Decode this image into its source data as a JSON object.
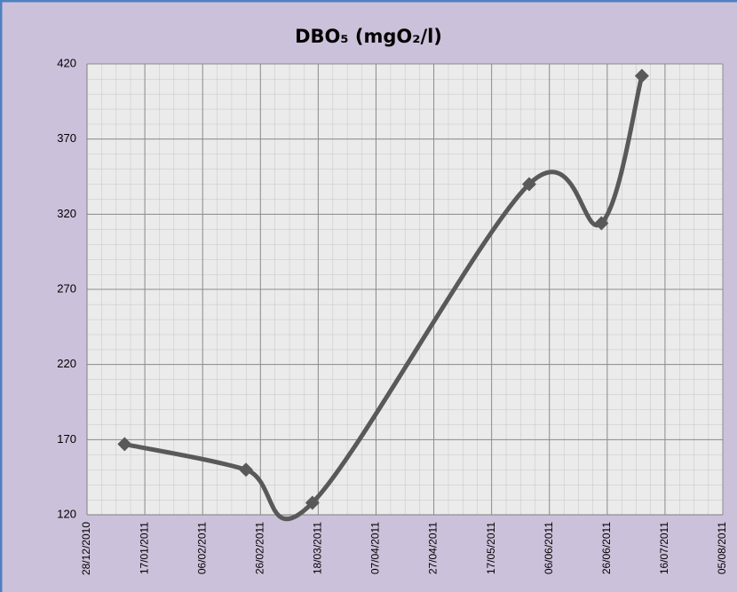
{
  "chart_data": {
    "type": "line",
    "title": "DBO₅ (mgO₂/l)",
    "x": [
      "10/01/2011",
      "21/02/2011",
      "16/03/2011",
      "30/05/2011",
      "24/06/2011",
      "08/07/2011"
    ],
    "series": [
      {
        "color": "#595959",
        "values": [
          167,
          150,
          128,
          340,
          314,
          412
        ]
      }
    ],
    "xlim": [
      "28/12/2010",
      "05/08/2011"
    ],
    "xticks": [
      "28/12/2010",
      "17/01/2011",
      "06/02/2011",
      "26/02/2011",
      "18/03/2011",
      "07/04/2011",
      "27/04/2011",
      "17/05/2011",
      "06/06/2011",
      "26/06/2011",
      "16/07/2011",
      "05/08/2011"
    ],
    "ylim": [
      120,
      420
    ],
    "yticks": [
      120,
      170,
      220,
      270,
      320,
      370,
      420
    ],
    "grid": true
  }
}
